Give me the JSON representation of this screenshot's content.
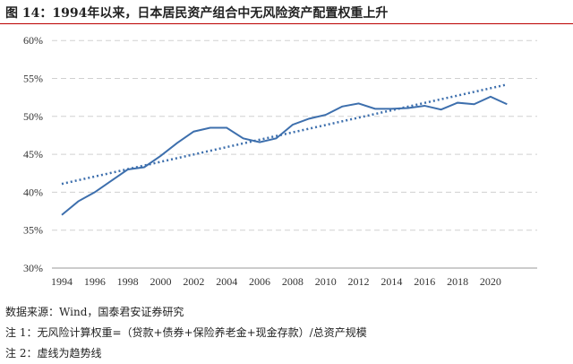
{
  "title": "图 14：1994年以来，日本居民资产组合中无风险资产配置权重上升",
  "notes": [
    "数据来源：Wind，国泰君安证券研究",
    "注 1：无风险计算权重=（贷款+债券+保险养老金+现金存款）/总资产规模",
    "注 2：虚线为趋势线"
  ],
  "chart_data": {
    "type": "line",
    "title": "",
    "xlabel": "",
    "ylabel": "",
    "ylim": [
      30,
      60
    ],
    "yticks": [
      "30%",
      "35%",
      "40%",
      "45%",
      "50%",
      "55%",
      "60%"
    ],
    "xticks": [
      "1994",
      "1996",
      "1998",
      "2000",
      "2002",
      "2004",
      "2006",
      "2008",
      "2010",
      "2012",
      "2014",
      "2016",
      "2018",
      "2020"
    ],
    "grid": "horizontal dashed",
    "x": [
      1994,
      1995,
      1996,
      1997,
      1998,
      1999,
      2000,
      2001,
      2002,
      2003,
      2004,
      2005,
      2006,
      2007,
      2008,
      2009,
      2010,
      2011,
      2012,
      2013,
      2014,
      2015,
      2016,
      2017,
      2018,
      2019,
      2020,
      2021
    ],
    "series": [
      {
        "values": [
          37.0,
          38.8,
          40.0,
          41.5,
          43.0,
          43.3,
          44.8,
          46.5,
          48.0,
          48.5,
          48.5,
          47.1,
          46.6,
          47.1,
          48.9,
          49.7,
          50.2,
          51.3,
          51.7,
          51.0,
          51.0,
          51.1,
          51.4,
          50.9,
          51.8,
          51.6,
          52.6,
          51.6
        ],
        "color": "#3d6fad",
        "style": "solid"
      },
      {
        "values_endpoints": {
          "1994": 41.1,
          "2021": 54.2
        },
        "color": "#3d6fad",
        "style": "dotted",
        "kind": "trend"
      }
    ]
  }
}
